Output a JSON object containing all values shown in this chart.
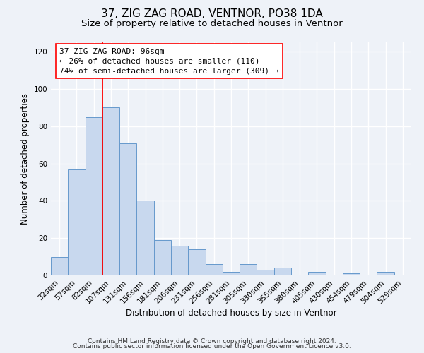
{
  "title": "37, ZIG ZAG ROAD, VENTNOR, PO38 1DA",
  "subtitle": "Size of property relative to detached houses in Ventnor",
  "xlabel": "Distribution of detached houses by size in Ventnor",
  "ylabel": "Number of detached properties",
  "categories": [
    "32sqm",
    "57sqm",
    "82sqm",
    "107sqm",
    "131sqm",
    "156sqm",
    "181sqm",
    "206sqm",
    "231sqm",
    "256sqm",
    "281sqm",
    "305sqm",
    "330sqm",
    "355sqm",
    "380sqm",
    "405sqm",
    "430sqm",
    "454sqm",
    "479sqm",
    "504sqm",
    "529sqm"
  ],
  "values": [
    10,
    57,
    85,
    90,
    71,
    40,
    19,
    16,
    14,
    6,
    2,
    6,
    3,
    4,
    0,
    2,
    0,
    1,
    0,
    2,
    0
  ],
  "bar_color": "#c8d8ee",
  "bar_edge_color": "#6699cc",
  "vline_x_index": 2.5,
  "vline_color": "red",
  "annotation_text": "37 ZIG ZAG ROAD: 96sqm\n← 26% of detached houses are smaller (110)\n74% of semi-detached houses are larger (309) →",
  "annotation_box_color": "white",
  "annotation_box_edge_color": "red",
  "ylim": [
    0,
    125
  ],
  "yticks": [
    0,
    20,
    40,
    60,
    80,
    100,
    120
  ],
  "footer1": "Contains HM Land Registry data © Crown copyright and database right 2024.",
  "footer2": "Contains public sector information licensed under the Open Government Licence v3.0.",
  "bg_color": "#eef2f8",
  "grid_color": "#ffffff",
  "title_fontsize": 11,
  "subtitle_fontsize": 9.5,
  "axis_label_fontsize": 8.5,
  "tick_fontsize": 7.5,
  "annotation_fontsize": 8,
  "footer_fontsize": 6.5
}
